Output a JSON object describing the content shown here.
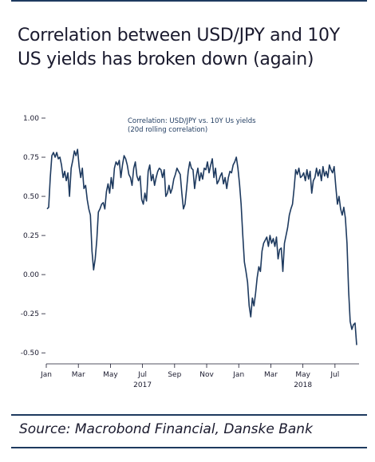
{
  "title": "Correlation between USD/JPY and 10Y US yields has broken down (again)",
  "source": "Source: Macrobond Financial, Danske Bank",
  "chart_data": {
    "type": "line",
    "title": "Correlation between USD/JPY and 10Y US yields has broken down (again)",
    "legend": [
      "Correlation: USD/JPY vs. 10Y Us yields",
      "(20d rolling correlation)"
    ],
    "legend_position": "top-center",
    "line_color": "#1e3a5f",
    "ylim": [
      -0.55,
      1.0
    ],
    "yticks": [
      1.0,
      0.75,
      0.5,
      0.25,
      0.0,
      -0.25,
      -0.5
    ],
    "ytick_labels": [
      "1.00",
      "0.75",
      "0.50",
      "0.25",
      "0.00",
      "-0.25",
      "-0.50"
    ],
    "xlim_months": [
      0,
      19.5
    ],
    "xtick_labels": [
      "Jan",
      "Mar",
      "May",
      "Jul",
      "Sep",
      "Nov",
      "Jan",
      "Mar",
      "May",
      "Jul"
    ],
    "xtick_months": [
      0,
      2,
      4,
      6,
      8,
      10,
      12,
      14,
      16,
      18
    ],
    "year_labels": [
      {
        "label": "2017",
        "month": 6
      },
      {
        "label": "2018",
        "month": 16
      }
    ],
    "grid": false,
    "series": [
      {
        "name": "Correlation: USD/JPY vs. 10Y Us yields",
        "x": [
          0.05,
          0.15,
          0.25,
          0.35,
          0.45,
          0.55,
          0.65,
          0.75,
          0.85,
          0.95,
          1.05,
          1.15,
          1.25,
          1.35,
          1.45,
          1.55,
          1.65,
          1.75,
          1.85,
          1.95,
          2.05,
          2.15,
          2.25,
          2.35,
          2.45,
          2.55,
          2.65,
          2.75,
          2.85,
          2.95,
          3.05,
          3.15,
          3.25,
          3.35,
          3.45,
          3.55,
          3.65,
          3.75,
          3.85,
          3.95,
          4.05,
          4.15,
          4.25,
          4.35,
          4.45,
          4.55,
          4.65,
          4.75,
          4.85,
          4.95,
          5.05,
          5.15,
          5.25,
          5.35,
          5.45,
          5.55,
          5.65,
          5.75,
          5.85,
          5.95,
          6.05,
          6.15,
          6.25,
          6.35,
          6.45,
          6.55,
          6.65,
          6.75,
          6.85,
          6.95,
          7.05,
          7.15,
          7.25,
          7.35,
          7.45,
          7.55,
          7.65,
          7.75,
          7.85,
          7.95,
          8.05,
          8.15,
          8.25,
          8.35,
          8.45,
          8.55,
          8.65,
          8.75,
          8.85,
          8.95,
          9.05,
          9.15,
          9.25,
          9.35,
          9.45,
          9.55,
          9.65,
          9.75,
          9.85,
          9.95,
          10.05,
          10.15,
          10.25,
          10.35,
          10.45,
          10.55,
          10.65,
          10.75,
          10.85,
          10.95,
          11.05,
          11.15,
          11.25,
          11.35,
          11.45,
          11.55,
          11.65,
          11.75,
          11.85,
          11.95,
          12.05,
          12.15,
          12.25,
          12.35,
          12.45,
          12.55,
          12.65,
          12.75,
          12.85,
          12.95,
          13.05,
          13.15,
          13.25,
          13.35,
          13.45,
          13.55,
          13.65,
          13.75,
          13.85,
          13.95,
          14.05,
          14.15,
          14.25,
          14.35,
          14.45,
          14.55,
          14.65,
          14.75,
          14.85,
          14.95,
          15.05,
          15.15,
          15.25,
          15.35,
          15.45,
          15.55,
          15.65,
          15.75,
          15.85,
          15.95,
          16.05,
          16.15,
          16.25,
          16.35,
          16.45,
          16.55,
          16.65,
          16.75,
          16.85,
          16.95,
          17.05,
          17.15,
          17.25,
          17.35,
          17.45,
          17.55,
          17.65,
          17.75,
          17.85,
          17.95,
          18.05,
          18.15,
          18.25,
          18.35,
          18.45,
          18.55,
          18.65,
          18.75,
          18.85,
          18.95,
          19.05,
          19.15,
          19.25,
          19.35
        ],
        "values": [
          0.42,
          0.43,
          0.62,
          0.76,
          0.78,
          0.75,
          0.78,
          0.74,
          0.75,
          0.7,
          0.62,
          0.66,
          0.6,
          0.65,
          0.5,
          0.68,
          0.73,
          0.79,
          0.76,
          0.8,
          0.69,
          0.62,
          0.68,
          0.55,
          0.57,
          0.48,
          0.42,
          0.38,
          0.15,
          0.03,
          0.1,
          0.22,
          0.4,
          0.42,
          0.45,
          0.46,
          0.42,
          0.53,
          0.58,
          0.52,
          0.62,
          0.55,
          0.68,
          0.72,
          0.7,
          0.73,
          0.62,
          0.7,
          0.76,
          0.74,
          0.7,
          0.64,
          0.62,
          0.57,
          0.68,
          0.72,
          0.63,
          0.6,
          0.63,
          0.48,
          0.45,
          0.52,
          0.47,
          0.66,
          0.7,
          0.6,
          0.64,
          0.57,
          0.62,
          0.66,
          0.68,
          0.67,
          0.62,
          0.67,
          0.5,
          0.52,
          0.57,
          0.52,
          0.55,
          0.61,
          0.64,
          0.68,
          0.66,
          0.64,
          0.52,
          0.42,
          0.45,
          0.55,
          0.66,
          0.72,
          0.68,
          0.67,
          0.55,
          0.63,
          0.68,
          0.6,
          0.65,
          0.61,
          0.68,
          0.67,
          0.72,
          0.65,
          0.7,
          0.74,
          0.62,
          0.68,
          0.58,
          0.6,
          0.63,
          0.65,
          0.58,
          0.62,
          0.55,
          0.62,
          0.66,
          0.65,
          0.7,
          0.72,
          0.75,
          0.68,
          0.58,
          0.45,
          0.25,
          0.08,
          0.02,
          -0.05,
          -0.2,
          -0.27,
          -0.15,
          -0.2,
          -0.12,
          -0.02,
          0.05,
          0.02,
          0.15,
          0.2,
          0.22,
          0.24,
          0.18,
          0.25,
          0.2,
          0.23,
          0.18,
          0.24,
          0.1,
          0.16,
          0.17,
          0.02,
          0.2,
          0.25,
          0.3,
          0.38,
          0.42,
          0.45,
          0.55,
          0.67,
          0.64,
          0.68,
          0.62,
          0.63,
          0.65,
          0.6,
          0.67,
          0.61,
          0.66,
          0.52,
          0.6,
          0.62,
          0.68,
          0.63,
          0.67,
          0.6,
          0.69,
          0.63,
          0.66,
          0.62,
          0.7,
          0.67,
          0.65,
          0.69,
          0.56,
          0.45,
          0.5,
          0.42,
          0.38,
          0.43,
          0.36,
          0.2,
          -0.1,
          -0.3,
          -0.35,
          -0.32,
          -0.31,
          -0.45
        ]
      }
    ]
  }
}
